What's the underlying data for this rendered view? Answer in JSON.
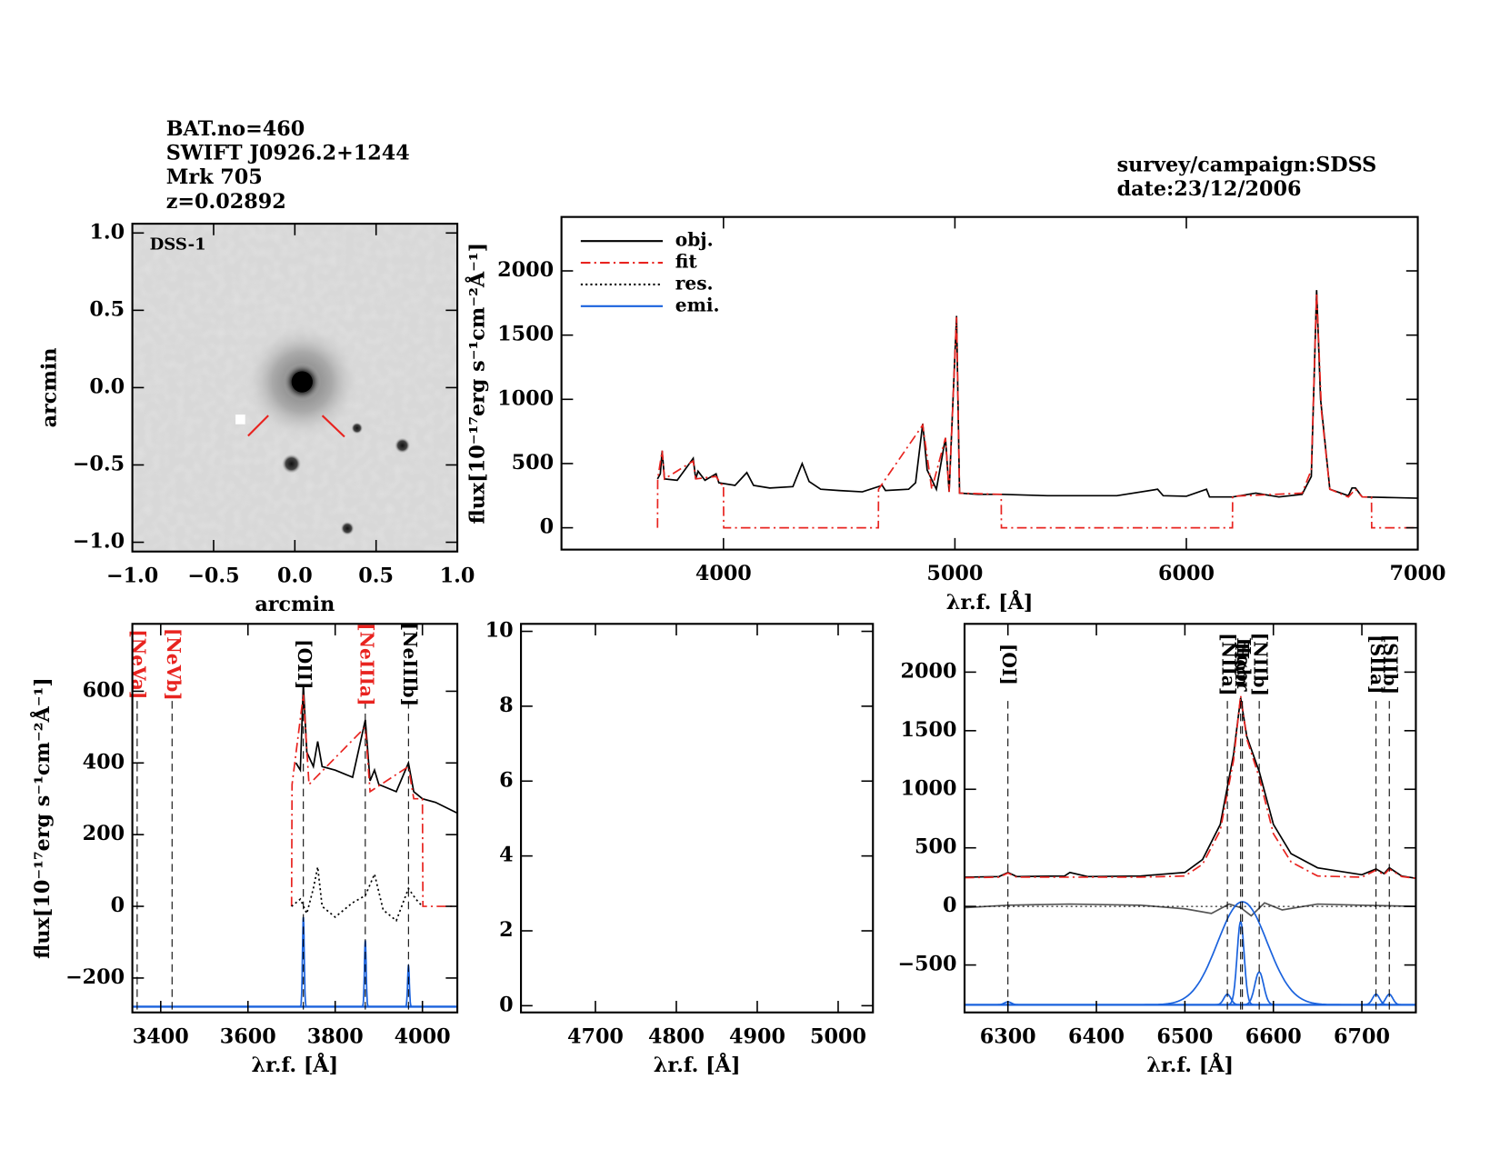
{
  "header": {
    "lines": [
      "BAT.no=460",
      "SWIFT J0926.2+1244",
      "Mrk 705",
      "z=0.02892"
    ],
    "survey": "survey/campaign:SDSS",
    "date": "date:23/12/2006"
  },
  "chart_data": [
    {
      "type": "image",
      "label": "DSS-1",
      "xlim": [
        -1.0,
        1.0
      ],
      "ylim": [
        -1.06,
        1.06
      ],
      "xticks": [
        {
          "value": -1.0,
          "label": "−1.0"
        },
        {
          "value": -0.5,
          "label": "−0.5"
        },
        {
          "value": 0.0,
          "label": "0.0"
        },
        {
          "value": 0.5,
          "label": "0.5"
        },
        {
          "value": 1.0,
          "label": "1.0"
        }
      ],
      "yticks": [
        {
          "value": -1.0,
          "label": "−1.0"
        },
        {
          "value": -0.5,
          "label": "−0.5"
        },
        {
          "value": 0.0,
          "label": "0.0"
        },
        {
          "value": 0.5,
          "label": "0.5"
        },
        {
          "value": 1.0,
          "label": "1.0"
        }
      ],
      "xlabel": "arcmin",
      "ylabel": "arcmin"
    },
    {
      "type": "line",
      "xlim": [
        3300,
        7000
      ],
      "ylim": [
        -170,
        2420
      ],
      "xticks": [
        4000,
        5000,
        6000,
        7000
      ],
      "yticks": [
        0,
        500,
        1000,
        1500,
        2000
      ],
      "xlabel": "λr.f. [Å]",
      "ylabel": "flux[10⁻¹⁷erg s⁻¹cm⁻²Å⁻¹]",
      "legend": [
        {
          "name": "obj.",
          "color": "#000000",
          "dash": "none"
        },
        {
          "name": "fit",
          "color": "#e8231f",
          "dash": "10 4 2 4"
        },
        {
          "name": "res.",
          "color": "#000000",
          "dash": "2 3"
        },
        {
          "name": "emi.",
          "color": "#1a62dd",
          "dash": "none"
        }
      ],
      "series": [
        {
          "color": "#000000",
          "dash": "none",
          "x": [
            3715,
            3727,
            3735,
            3745,
            3800,
            3869,
            3880,
            3890,
            3920,
            3968,
            3980,
            4050,
            4101,
            4130,
            4200,
            4300,
            4340,
            4370,
            4420,
            4500,
            4600,
            4686,
            4700,
            4800,
            4830,
            4861,
            4880,
            4920,
            4959,
            4975,
            5007,
            5020,
            5100,
            5200,
            5300,
            5400,
            5500,
            5700,
            5876,
            5900,
            6000,
            6087,
            6100,
            6200,
            6300,
            6400,
            6500,
            6540,
            6563,
            6580,
            6620,
            6700,
            6716,
            6731,
            6760,
            6900,
            7000
          ],
          "values": [
            380,
            420,
            600,
            380,
            370,
            540,
            380,
            440,
            370,
            420,
            350,
            330,
            430,
            330,
            310,
            320,
            500,
            360,
            300,
            290,
            280,
            330,
            290,
            300,
            350,
            810,
            450,
            300,
            700,
            280,
            1650,
            270,
            260,
            260,
            255,
            250,
            250,
            250,
            300,
            250,
            245,
            300,
            240,
            240,
            270,
            240,
            260,
            400,
            1850,
            1000,
            300,
            250,
            310,
            310,
            240,
            235,
            230
          ]
        },
        {
          "color": "#e8231f",
          "dash": "10 4 2 4",
          "x": [
            3715,
            3716,
            3735,
            3745,
            3869,
            3880,
            3968,
            3990,
            4000,
            4001,
            4669,
            4670,
            4861,
            4900,
            4959,
            4975,
            5007,
            5020,
            5200,
            5201,
            6199,
            6200,
            6500,
            6540,
            6563,
            6584,
            6620,
            6700,
            6731,
            6760,
            6800,
            6801,
            7000
          ],
          "values": [
            0,
            380,
            600,
            380,
            520,
            380,
            400,
            340,
            340,
            0,
            0,
            300,
            800,
            300,
            700,
            280,
            1640,
            270,
            260,
            0,
            0,
            245,
            270,
            450,
            1830,
            900,
            300,
            240,
            300,
            240,
            240,
            0,
            0
          ]
        }
      ]
    },
    {
      "type": "line",
      "xlim": [
        3335,
        4080
      ],
      "ylim": [
        -296,
        788
      ],
      "xticks": [
        3400,
        3600,
        3800,
        4000
      ],
      "yticks": [
        {
          "value": -200,
          "label": "−200"
        },
        0,
        200,
        400,
        600
      ],
      "xlabel": "λr.f. [Å]",
      "ylabel": "flux[10⁻¹⁷erg s⁻¹cm⁻²Å⁻¹]",
      "series": [
        {
          "color": "#000000",
          "dash": "none",
          "x": [
            3710,
            3720,
            3727,
            3735,
            3750,
            3760,
            3770,
            3800,
            3840,
            3869,
            3880,
            3890,
            3900,
            3940,
            3968,
            3980,
            4000,
            4030,
            4080
          ],
          "values": [
            400,
            380,
            620,
            430,
            390,
            460,
            390,
            380,
            360,
            520,
            350,
            380,
            340,
            320,
            400,
            320,
            300,
            290,
            260
          ]
        },
        {
          "color": "#e8231f",
          "dash": "10 4 2 4",
          "x": [
            3700,
            3701,
            3727,
            3740,
            3869,
            3880,
            3968,
            3980,
            4000,
            4001,
            4080
          ],
          "values": [
            0,
            340,
            590,
            340,
            500,
            320,
            390,
            300,
            300,
            0,
            0
          ]
        },
        {
          "color": "#000000",
          "dash": "2 3",
          "x": [
            3700,
            3720,
            3735,
            3750,
            3760,
            3770,
            3800,
            3840,
            3869,
            3890,
            3910,
            3940,
            3968,
            3985,
            4000
          ],
          "values": [
            0,
            20,
            -20,
            50,
            110,
            0,
            -30,
            10,
            30,
            90,
            -10,
            -40,
            50,
            20,
            0
          ]
        }
      ],
      "emission": {
        "color": "#1a62dd",
        "base": -280,
        "components": [
          {
            "center": 3727,
            "peak": -30,
            "sigma": 2
          },
          {
            "center": 3869,
            "peak": -95,
            "sigma": 2
          },
          {
            "center": 3968,
            "peak": -165,
            "sigma": 2
          }
        ]
      },
      "lines": [
        {
          "label": "[NeVa]",
          "wave": 3346,
          "color": "#e8231f"
        },
        {
          "label": "[NeVb]",
          "wave": 3426,
          "color": "#e8231f"
        },
        {
          "label": "[OII]",
          "wave": 3727,
          "color": "#000000"
        },
        {
          "label": "[NeIIIa]",
          "wave": 3869,
          "color": "#e8231f"
        },
        {
          "label": "[NeIIIb]",
          "wave": 3968,
          "color": "#000000"
        }
      ]
    },
    {
      "type": "line",
      "xlim": [
        4608,
        5043
      ],
      "ylim": [
        -0.18,
        10.2
      ],
      "xticks": [
        4700,
        4800,
        4900,
        5000
      ],
      "yticks": [
        0,
        2,
        4,
        6,
        8,
        10
      ],
      "xlabel": "λr.f. [Å]",
      "series": []
    },
    {
      "type": "line",
      "xlim": [
        6251,
        6761
      ],
      "ylim": [
        -905,
        2412
      ],
      "xticks": [
        6300,
        6400,
        6500,
        6600,
        6700
      ],
      "yticks": [
        {
          "value": -500,
          "label": "−500"
        },
        0,
        500,
        1000,
        1500,
        2000
      ],
      "xlabel": "λr.f. [Å]",
      "series": [
        {
          "color": "#000000",
          "dash": "none",
          "x": [
            6251,
            6290,
            6300,
            6310,
            6364,
            6370,
            6390,
            6450,
            6500,
            6520,
            6540,
            6555,
            6563,
            6570,
            6584,
            6600,
            6620,
            6650,
            6700,
            6716,
            6725,
            6731,
            6745,
            6761
          ],
          "values": [
            250,
            255,
            290,
            255,
            260,
            290,
            255,
            260,
            290,
            400,
            700,
            1300,
            1780,
            1450,
            1150,
            700,
            450,
            330,
            270,
            320,
            280,
            330,
            260,
            240
          ]
        },
        {
          "color": "#e8231f",
          "dash": "10 4 2 4",
          "x": [
            6251,
            6290,
            6300,
            6310,
            6450,
            6500,
            6520,
            6540,
            6555,
            6563,
            6570,
            6584,
            6600,
            6620,
            6650,
            6700,
            6716,
            6725,
            6731,
            6745,
            6761
          ],
          "values": [
            245,
            250,
            285,
            250,
            250,
            260,
            360,
            650,
            1250,
            1800,
            1430,
            1100,
            620,
            380,
            260,
            250,
            310,
            270,
            320,
            255,
            240
          ]
        },
        {
          "color": "#555555",
          "dash": "none",
          "x": [
            6251,
            6300,
            6370,
            6450,
            6500,
            6530,
            6550,
            6563,
            6575,
            6590,
            6610,
            6650,
            6700,
            6761
          ],
          "values": [
            -10,
            10,
            20,
            10,
            -20,
            -60,
            20,
            -10,
            -80,
            30,
            -30,
            20,
            10,
            0
          ]
        }
      ],
      "emission": {
        "color": "#1a62dd",
        "base": -840,
        "components": [
          {
            "center": 6300,
            "peak": -815,
            "sigma": 4
          },
          {
            "center": 6548,
            "peak": -750,
            "sigma": 4
          },
          {
            "center": 6563,
            "peak": -130,
            "sigma": 4
          },
          {
            "center": 6565,
            "peak": 40,
            "sigma": 28
          },
          {
            "center": 6584,
            "peak": -560,
            "sigma": 5
          },
          {
            "center": 6716,
            "peak": -750,
            "sigma": 4
          },
          {
            "center": 6731,
            "peak": -750,
            "sigma": 4
          }
        ]
      },
      "lines": [
        {
          "label": "[OI]",
          "wave": 6300,
          "color": "#000000"
        },
        {
          "label": "[NIIa]",
          "wave": 6548,
          "color": "#000000"
        },
        {
          "label": "Hαn",
          "wave": 6563,
          "color": "#000000"
        },
        {
          "label": "Hαbr",
          "wave": 6565,
          "color": "#000000"
        },
        {
          "label": "[NIIb]",
          "wave": 6584,
          "color": "#000000"
        },
        {
          "label": "[SIIa]",
          "wave": 6716,
          "color": "#000000"
        },
        {
          "label": "[SIIb]",
          "wave": 6731,
          "color": "#000000"
        }
      ]
    }
  ]
}
